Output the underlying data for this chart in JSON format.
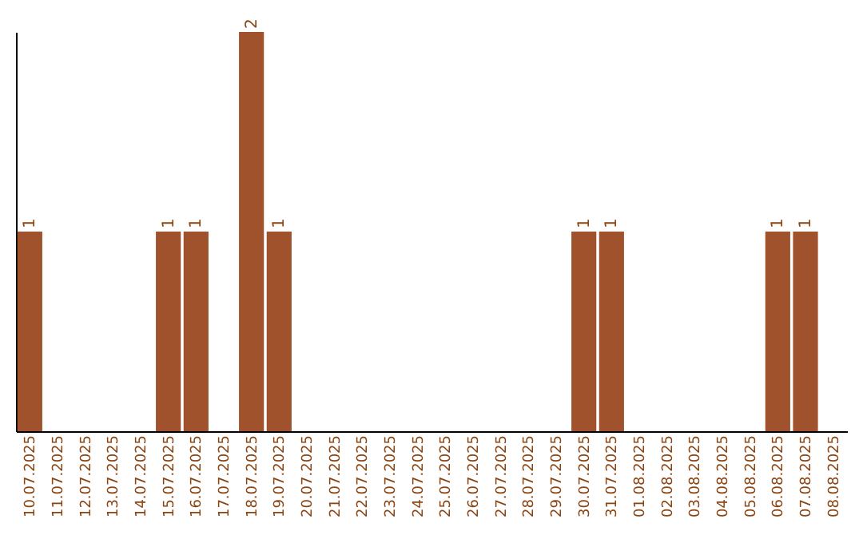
{
  "chart_data": {
    "type": "bar",
    "categories": [
      "10.07.2025",
      "11.07.2025",
      "12.07.2025",
      "13.07.2025",
      "14.07.2025",
      "15.07.2025",
      "16.07.2025",
      "17.07.2025",
      "18.07.2025",
      "19.07.2025",
      "20.07.2025",
      "21.07.2025",
      "22.07.2025",
      "23.07.2025",
      "24.07.2025",
      "25.07.2025",
      "26.07.2025",
      "27.07.2025",
      "28.07.2025",
      "29.07.2025",
      "30.07.2025",
      "31.07.2025",
      "01.08.2025",
      "02.08.2025",
      "03.08.2025",
      "04.08.2025",
      "05.08.2025",
      "06.08.2025",
      "07.08.2025",
      "08.08.2025"
    ],
    "values": [
      1,
      0,
      0,
      0,
      0,
      1,
      1,
      0,
      2,
      1,
      0,
      0,
      0,
      0,
      0,
      0,
      0,
      0,
      0,
      0,
      1,
      1,
      0,
      0,
      0,
      0,
      0,
      1,
      1,
      0
    ],
    "value_labels": [
      "1",
      null,
      null,
      null,
      null,
      "1",
      "1",
      null,
      "2",
      "1",
      null,
      null,
      null,
      null,
      null,
      null,
      null,
      null,
      null,
      null,
      "1",
      "1",
      null,
      null,
      null,
      null,
      null,
      "1",
      "1",
      null
    ],
    "color": "#a0522d",
    "tick_labels": "x"
  }
}
